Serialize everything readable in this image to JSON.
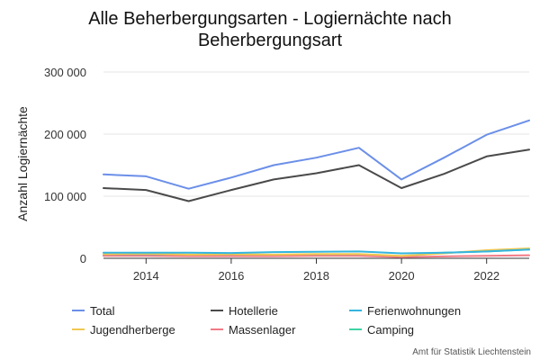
{
  "chart_data": {
    "type": "line",
    "title_lines": [
      "Alle Beherbergungsarten - Logiernächte nach",
      "Beherbergungsart"
    ],
    "ylabel": "Anzahl Logiernächte",
    "xlabel": "",
    "x": [
      2013,
      2014,
      2015,
      2016,
      2017,
      2018,
      2019,
      2020,
      2021,
      2022,
      2023
    ],
    "xlim": [
      2013,
      2023
    ],
    "ylim": [
      0,
      300000
    ],
    "x_ticks": [
      2014,
      2016,
      2018,
      2020,
      2022
    ],
    "x_tick_labels": [
      "2014",
      "2016",
      "2018",
      "2020",
      "2022"
    ],
    "y_ticks": [
      0,
      100000,
      200000,
      300000
    ],
    "y_tick_labels": [
      "0",
      "100 000",
      "200 000",
      "300 000"
    ],
    "grid": true,
    "legend_position": "bottom",
    "series": [
      {
        "name": "Total",
        "color": "#6b8fe8",
        "values": [
          135000,
          132000,
          112000,
          130000,
          150000,
          162000,
          178000,
          127000,
          162000,
          199000,
          222000
        ]
      },
      {
        "name": "Hotellerie",
        "color": "#4a4a4a",
        "values": [
          113000,
          110000,
          92000,
          110000,
          127000,
          137000,
          150000,
          113000,
          136000,
          164000,
          175000
        ]
      },
      {
        "name": "Ferienwohnungen",
        "color": "#33b5e0",
        "values": [
          9000,
          9000,
          9000,
          8500,
          10000,
          10500,
          11000,
          8000,
          9000,
          11000,
          14000
        ]
      },
      {
        "name": "Jugendherberge",
        "color": "#f0c850",
        "values": [
          7000,
          7500,
          6000,
          6500,
          6000,
          7000,
          7000,
          4000,
          8000,
          13000,
          16000
        ]
      },
      {
        "name": "Massenlager",
        "color": "#f27a85",
        "values": [
          4000,
          4000,
          3500,
          3500,
          3500,
          4000,
          4000,
          2000,
          3000,
          4000,
          5000
        ]
      },
      {
        "name": "Camping",
        "color": "#3ed3a5",
        "values": [
          5000,
          5000,
          4500,
          4500,
          5000,
          5500,
          6000,
          3000,
          9000,
          11000,
          14000
        ]
      }
    ]
  },
  "credit": "Amt für Statistik Liechtenstein"
}
